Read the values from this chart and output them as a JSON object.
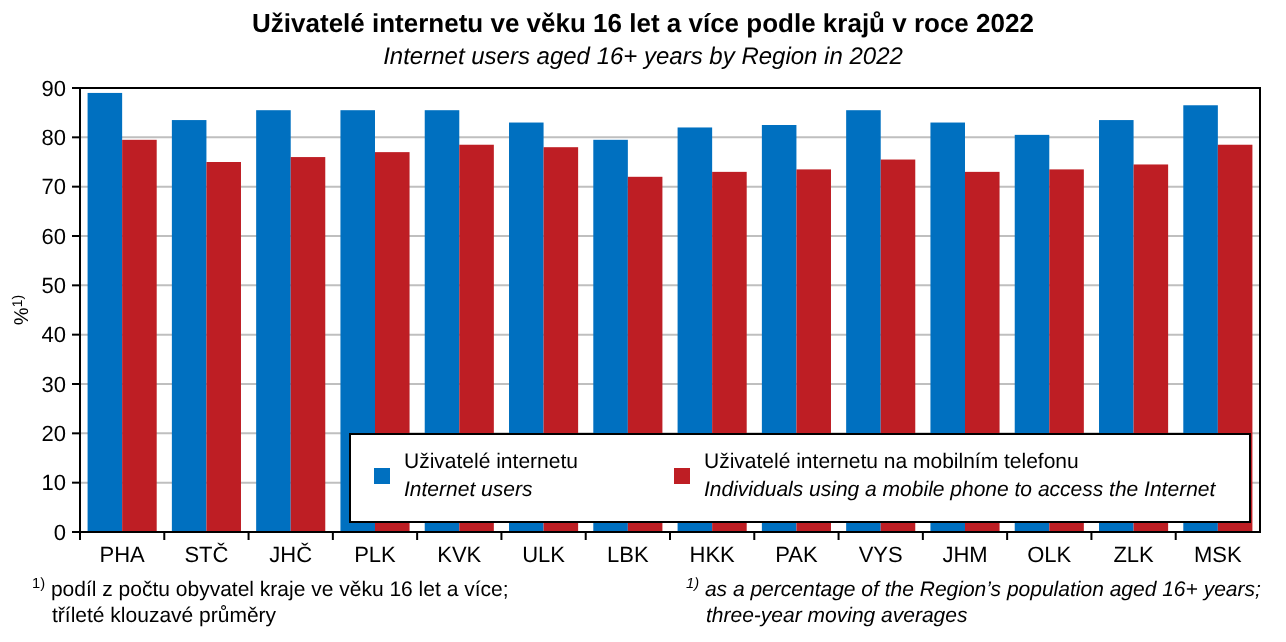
{
  "chart_data": {
    "type": "bar",
    "title": "Uživatelé internetu ve věku 16 let a více podle krajů v roce 2022",
    "subtitle": "Internet users aged 16+ years by Region in 2022",
    "ylabel": "%$^{1)}$",
    "categories": [
      "PHA",
      "STČ",
      "JHČ",
      "PLK",
      "KVK",
      "ULK",
      "LBK",
      "HKK",
      "PAK",
      "VYS",
      "JHM",
      "OLK",
      "ZLK",
      "MSK"
    ],
    "series": [
      {
        "name": "Uživatelé internetu\nInternet users",
        "color": "#0070c0",
        "values": [
          89,
          83.5,
          85.5,
          85.5,
          85.5,
          83,
          79.5,
          82,
          82.5,
          85.5,
          83,
          80.5,
          83.5,
          86.5
        ]
      },
      {
        "name": "Uživatelé internetu na mobilním  telefonu\nIndividuals using a mobile phone to access the Internet",
        "color": "#be1e24",
        "values": [
          79.5,
          75,
          76,
          77,
          78.5,
          78,
          72,
          73,
          73.5,
          75.5,
          73,
          73.5,
          74.5,
          78.5
        ]
      }
    ],
    "ylim": [
      0,
      90
    ],
    "yticks": [
      0,
      10,
      20,
      30,
      40,
      50,
      60,
      70,
      80,
      90
    ],
    "grid": "y",
    "legend": "bottom right",
    "annotations": [
      "$^{1)}$ podíl z počtu obyvatel kraje ve věku 16 let a více;\ntříleté klouzavé průměry",
      "$^{1)}$ as a percentage of the Region’s population aged 16+ years;\nthree-year moving averages"
    ]
  }
}
